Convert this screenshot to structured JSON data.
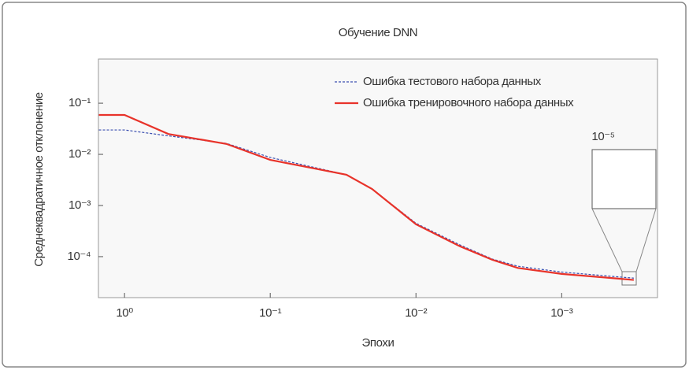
{
  "chart_data": {
    "type": "line",
    "title": "Обучение DNN",
    "x_label": "Эпохи",
    "y_label": "Среднеквадратичное отклонение",
    "xscale": "log",
    "yscale": "log",
    "xlim": [
      1.51,
      0.00022
    ],
    "ylim": [
      0.73,
      1.58e-05
    ],
    "xticks": [
      {
        "value": 1,
        "label": "10⁰"
      },
      {
        "value": 0.1,
        "label": "10⁻¹"
      },
      {
        "value": 0.01,
        "label": "10⁻²"
      },
      {
        "value": 0.001,
        "label": "10⁻³"
      }
    ],
    "yticks": [
      {
        "value": 0.1,
        "label": "10⁻¹"
      },
      {
        "value": 0.01,
        "label": "10⁻²"
      },
      {
        "value": 0.001,
        "label": "10⁻³"
      },
      {
        "value": 0.0001,
        "label": "10⁻⁴"
      }
    ],
    "x": [
      1.5,
      1,
      0.5,
      0.2,
      0.1,
      0.03,
      0.02,
      0.01,
      0.005,
      0.003,
      0.002,
      0.001,
      0.0004,
      0.00032
    ],
    "series": [
      {
        "name": "Ошибка тестового набора данных",
        "color": "#3b4fb0",
        "dashed": true,
        "values": [
          0.03,
          0.03,
          0.023,
          0.0164,
          0.0087,
          0.004,
          0.0021,
          0.00045,
          0.00017,
          9e-05,
          6.5e-05,
          5e-05,
          4e-05,
          3.8e-05
        ]
      },
      {
        "name": "Ошибка тренировочного набора данных",
        "color": "#e8332a",
        "dashed": false,
        "values": [
          0.059,
          0.059,
          0.025,
          0.016,
          0.0078,
          0.004,
          0.0021,
          0.00043,
          0.00016,
          8.7e-05,
          6e-05,
          4.6e-05,
          3.7e-05,
          3.5e-05
        ]
      }
    ],
    "legend": "upper right",
    "inset_label": "10⁻⁵"
  }
}
